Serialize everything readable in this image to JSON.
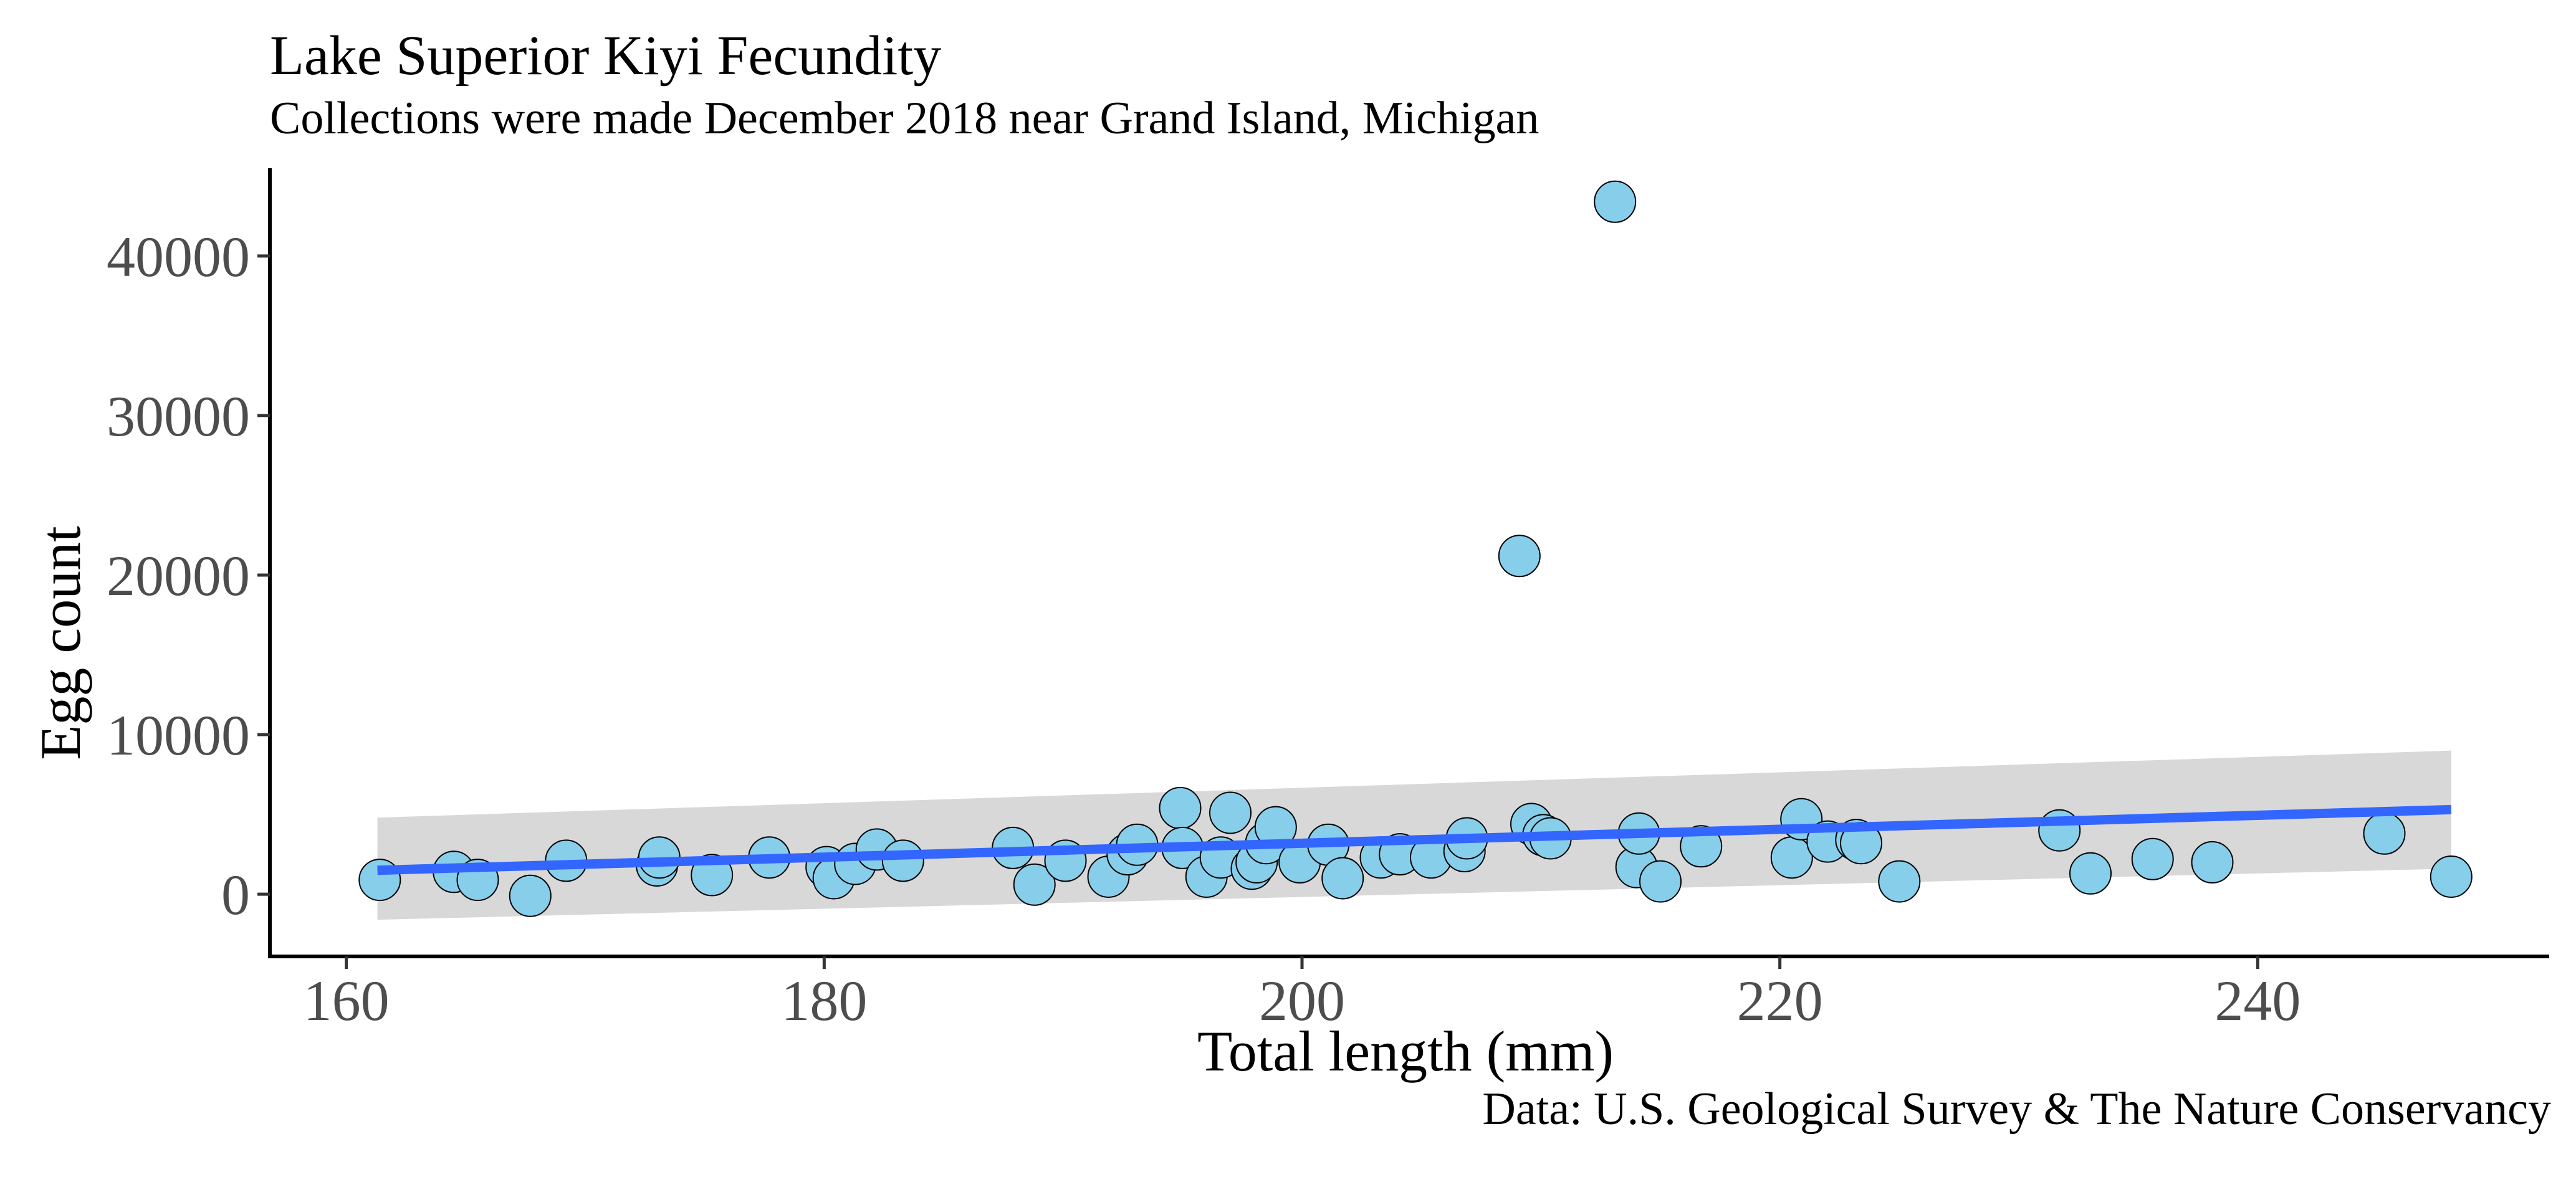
{
  "chart_data": {
    "type": "scatter",
    "title": "Lake Superior Kiyi Fecundity",
    "subtitle": "Collections were made December 2018 near Grand Island, Michigan",
    "caption": "Data: U.S. Geological Survey & The Nature Conservancy",
    "xlabel": "Total length (mm)",
    "ylabel": "Egg count",
    "xlim": [
      156.8,
      252.2
    ],
    "ylim": [
      -3900,
      45500
    ],
    "xticks": [
      160,
      180,
      200,
      220,
      240
    ],
    "yticks": [
      0,
      10000,
      20000,
      30000,
      40000
    ],
    "grid": false,
    "legend": "none",
    "point_color": "#87CEEB",
    "point_edge_color": "#000000",
    "trend_color": "#3366FF",
    "band_color": "#bebebe",
    "trend": {
      "x": [
        161.3,
        248.1
      ],
      "y": [
        1500,
        5300
      ]
    },
    "confidence_band": {
      "x": [
        161.3,
        248.1
      ],
      "lower": [
        -1600,
        1600
      ],
      "upper": [
        4800,
        9000
      ]
    },
    "points": [
      {
        "x": 161.4,
        "y": 900
      },
      {
        "x": 164.5,
        "y": 1400
      },
      {
        "x": 165.5,
        "y": 900
      },
      {
        "x": 167.7,
        "y": -100
      },
      {
        "x": 169.2,
        "y": 2100
      },
      {
        "x": 173.0,
        "y": 1800
      },
      {
        "x": 173.1,
        "y": 2300
      },
      {
        "x": 175.3,
        "y": 1200
      },
      {
        "x": 177.7,
        "y": 2300
      },
      {
        "x": 180.1,
        "y": 1700
      },
      {
        "x": 180.4,
        "y": 1000
      },
      {
        "x": 181.3,
        "y": 1900
      },
      {
        "x": 182.2,
        "y": 2800
      },
      {
        "x": 183.3,
        "y": 2100
      },
      {
        "x": 187.9,
        "y": 2900
      },
      {
        "x": 188.8,
        "y": 600
      },
      {
        "x": 190.1,
        "y": 2100
      },
      {
        "x": 191.9,
        "y": 1100
      },
      {
        "x": 192.7,
        "y": 2500
      },
      {
        "x": 193.1,
        "y": 3100
      },
      {
        "x": 194.9,
        "y": 5400
      },
      {
        "x": 195.0,
        "y": 2900
      },
      {
        "x": 196.0,
        "y": 1100
      },
      {
        "x": 196.6,
        "y": 2300
      },
      {
        "x": 197.0,
        "y": 5100
      },
      {
        "x": 197.9,
        "y": 1600
      },
      {
        "x": 198.1,
        "y": 2000
      },
      {
        "x": 198.5,
        "y": 3200
      },
      {
        "x": 198.9,
        "y": 4200
      },
      {
        "x": 199.9,
        "y": 2000
      },
      {
        "x": 201.1,
        "y": 3100
      },
      {
        "x": 201.7,
        "y": 1000
      },
      {
        "x": 203.3,
        "y": 2300
      },
      {
        "x": 204.1,
        "y": 2500
      },
      {
        "x": 205.4,
        "y": 2300
      },
      {
        "x": 206.8,
        "y": 2700
      },
      {
        "x": 206.9,
        "y": 3500
      },
      {
        "x": 209.1,
        "y": 21200
      },
      {
        "x": 209.6,
        "y": 4400
      },
      {
        "x": 210.1,
        "y": 3700
      },
      {
        "x": 210.4,
        "y": 3500
      },
      {
        "x": 213.1,
        "y": 43400
      },
      {
        "x": 214.0,
        "y": 1700
      },
      {
        "x": 214.1,
        "y": 3800
      },
      {
        "x": 215.0,
        "y": 800
      },
      {
        "x": 216.7,
        "y": 3000
      },
      {
        "x": 220.5,
        "y": 2300
      },
      {
        "x": 220.9,
        "y": 4700
      },
      {
        "x": 222.0,
        "y": 3300
      },
      {
        "x": 223.2,
        "y": 3400
      },
      {
        "x": 223.4,
        "y": 3200
      },
      {
        "x": 225.0,
        "y": 800
      },
      {
        "x": 231.7,
        "y": 4000
      },
      {
        "x": 233.0,
        "y": 1300
      },
      {
        "x": 235.6,
        "y": 2200
      },
      {
        "x": 238.1,
        "y": 2000
      },
      {
        "x": 245.3,
        "y": 3800
      },
      {
        "x": 248.1,
        "y": 1100
      }
    ]
  }
}
